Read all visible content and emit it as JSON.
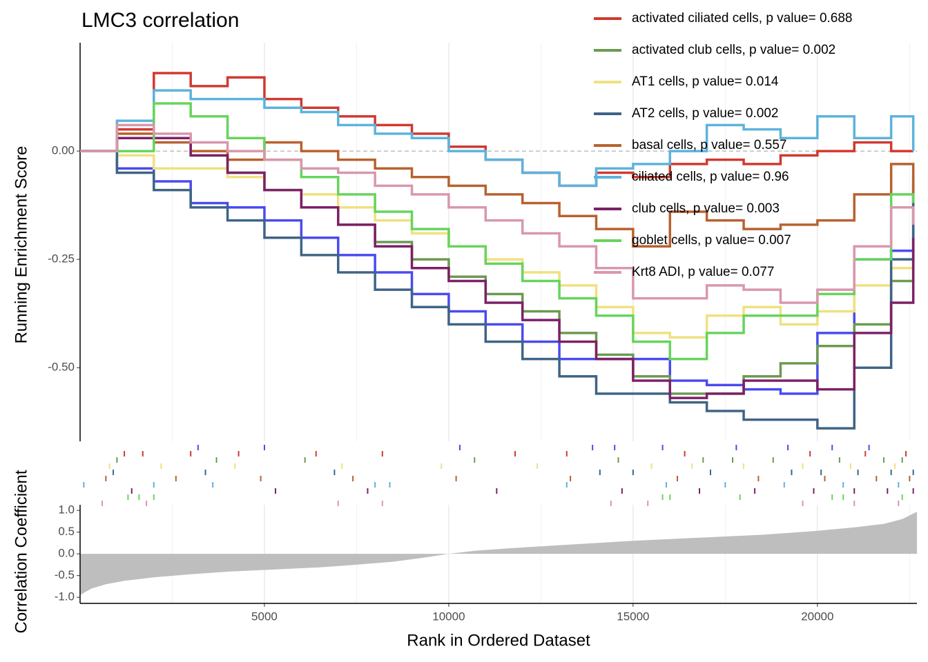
{
  "chart_data": [
    {
      "type": "line",
      "title": "LMC3 correlation",
      "y_label": "Running Enrichment Score",
      "legend": "top-right",
      "grid": true,
      "zero_line": true,
      "xlim": [
        0,
        22700
      ],
      "ylim": [
        -0.67,
        0.25
      ],
      "yticks": [
        {
          "value": 0,
          "label": "0.00"
        },
        {
          "value": -0.25,
          "label": "-0.25"
        },
        {
          "value": -0.5,
          "label": "-0.50"
        }
      ],
      "x": [
        0,
        1000,
        2000,
        3000,
        4000,
        5000,
        6000,
        7000,
        8000,
        9000,
        10000,
        11000,
        12000,
        13000,
        14000,
        15000,
        16000,
        17000,
        18000,
        19000,
        20000,
        21000,
        22000,
        22600
      ],
      "series": [
        {
          "color": "#4a4af0",
          "values": [
            0,
            -0.04,
            -0.07,
            -0.12,
            -0.13,
            -0.16,
            -0.2,
            -0.24,
            -0.28,
            -0.33,
            -0.37,
            -0.4,
            -0.44,
            -0.48,
            -0.48,
            -0.48,
            -0.53,
            -0.54,
            -0.55,
            -0.56,
            -0.42,
            -0.25,
            -0.23,
            -0.08
          ],
          "hits": [
            3200,
            5000,
            10300,
            13900,
            14500,
            15800,
            17800,
            19200,
            20400,
            21400
          ]
        },
        {
          "name": "activated ciliated cells, p value= 0.688",
          "color": "#cf3a2f",
          "values": [
            0,
            0.05,
            0.18,
            0.15,
            0.17,
            0.12,
            0.1,
            0.08,
            0.06,
            0.04,
            0.01,
            -0.02,
            -0.05,
            -0.08,
            -0.05,
            -0.06,
            -0.03,
            -0.02,
            -0.03,
            -0.01,
            0,
            0.02,
            0,
            0
          ],
          "hits": [
            1200,
            1700,
            3000,
            4300,
            6400,
            8200,
            11800,
            13200,
            16400,
            19800,
            21300,
            22400
          ]
        },
        {
          "name": "activated club cells, p value= 0.002",
          "color": "#6b9a50",
          "values": [
            0,
            0.03,
            0.03,
            -0.01,
            -0.05,
            -0.09,
            -0.13,
            -0.17,
            -0.21,
            -0.25,
            -0.29,
            -0.33,
            -0.37,
            -0.42,
            -0.47,
            -0.52,
            -0.56,
            -0.56,
            -0.52,
            -0.49,
            -0.45,
            -0.4,
            -0.3,
            -0.2
          ],
          "hits": [
            1000,
            3700,
            6100,
            10700,
            14600,
            16900,
            17700,
            18800,
            20600,
            21800,
            22300
          ]
        },
        {
          "name": "AT1 cells, p value= 0.014",
          "color": "#efe17f",
          "values": [
            0,
            -0.01,
            -0.04,
            -0.04,
            -0.06,
            -0.09,
            -0.1,
            -0.13,
            -0.16,
            -0.19,
            -0.22,
            -0.25,
            -0.28,
            -0.31,
            -0.36,
            -0.42,
            -0.43,
            -0.38,
            -0.36,
            -0.4,
            -0.37,
            -0.31,
            -0.27,
            -0.3
          ],
          "hits": [
            800,
            2200,
            4200,
            7100,
            9800,
            12400,
            15500,
            16600,
            18000,
            19600,
            20900,
            22100
          ]
        },
        {
          "name": "AT2 cells, p value= 0.002",
          "color": "#3e6485",
          "values": [
            0,
            -0.05,
            -0.09,
            -0.13,
            -0.16,
            -0.2,
            -0.24,
            -0.28,
            -0.32,
            -0.36,
            -0.4,
            -0.44,
            -0.48,
            -0.52,
            -0.56,
            -0.56,
            -0.58,
            -0.6,
            -0.62,
            -0.62,
            -0.64,
            -0.5,
            -0.25,
            -0.06
          ],
          "hits": [
            900,
            3400,
            6900,
            14100,
            15000,
            17100,
            19300,
            20100,
            21100,
            22000,
            22600
          ]
        },
        {
          "name": "basal cells, p value= 0.557",
          "color": "#b8612f",
          "values": [
            0,
            0.04,
            0.02,
            0,
            -0.02,
            0.02,
            0,
            -0.02,
            -0.04,
            -0.06,
            -0.08,
            -0.1,
            -0.12,
            -0.15,
            -0.18,
            -0.22,
            -0.14,
            -0.16,
            -0.18,
            -0.17,
            -0.16,
            -0.1,
            -0.03,
            -0.12
          ],
          "hits": [
            700,
            2600,
            4900,
            7400,
            10200,
            13300,
            16200,
            18400,
            20200,
            21600,
            22500
          ]
        },
        {
          "name": "ciliated cells, p value= 0.96",
          "color": "#5cb3dd",
          "values": [
            0,
            0.07,
            0.14,
            0.12,
            0.12,
            0.1,
            0.09,
            0.06,
            0.04,
            0.03,
            0,
            -0.02,
            -0.05,
            -0.08,
            -0.04,
            -0.03,
            0,
            0.06,
            0.05,
            0.03,
            0.08,
            0.03,
            0.08,
            0
          ],
          "hits": [
            100,
            2000,
            3600,
            8000,
            8400,
            13200,
            15900,
            17500,
            19100,
            20700,
            22200
          ]
        },
        {
          "name": "club cells, p value= 0.003",
          "color": "#7c2067",
          "values": [
            0,
            0.03,
            0.03,
            -0.01,
            -0.05,
            -0.09,
            -0.13,
            -0.17,
            -0.22,
            -0.27,
            -0.3,
            -0.35,
            -0.39,
            -0.44,
            -0.48,
            -0.53,
            -0.57,
            -0.56,
            -0.53,
            -0.53,
            -0.55,
            -0.42,
            -0.35,
            -0.2
          ],
          "hits": [
            1400,
            5300,
            7800,
            11300,
            14700,
            16800,
            18300,
            19900,
            21000,
            21900,
            22600
          ]
        },
        {
          "name": "goblet cells, p value= 0.007",
          "color": "#67d45d",
          "values": [
            0,
            0,
            0.11,
            0.08,
            0.03,
            -0.02,
            -0.06,
            -0.1,
            -0.14,
            -0.18,
            -0.22,
            -0.26,
            -0.3,
            -0.34,
            -0.38,
            -0.44,
            -0.48,
            -0.42,
            -0.38,
            -0.38,
            -0.33,
            -0.25,
            -0.1,
            -0.12
          ],
          "hits": [
            1300,
            1600,
            2000,
            15800,
            16000,
            17900,
            20400,
            20700,
            22300
          ]
        },
        {
          "name": "Krt8 ADI, p value= 0.077",
          "color": "#d897ad",
          "values": [
            0,
            0.06,
            0.04,
            0.02,
            0,
            -0.02,
            -0.04,
            -0.05,
            -0.08,
            -0.1,
            -0.13,
            -0.16,
            -0.19,
            -0.22,
            -0.27,
            -0.34,
            -0.34,
            -0.31,
            -0.32,
            -0.35,
            -0.32,
            -0.22,
            -0.13,
            -0.17
          ],
          "hits": [
            600,
            1800,
            7000,
            8200,
            14400,
            15400,
            19600,
            21000,
            22200
          ]
        }
      ]
    },
    {
      "type": "area",
      "x_label": "Rank in Ordered Dataset",
      "y_label": "Correlation Coefficient",
      "color": "#bebebe",
      "grid": true,
      "xlim": [
        0,
        22700
      ],
      "ylim": [
        -1.14,
        1.13
      ],
      "xticks": [
        5000,
        10000,
        15000,
        20000
      ],
      "yticks": [
        {
          "value": 1,
          "label": "1.0"
        },
        {
          "value": 0.5,
          "label": "0.5"
        },
        {
          "value": 0,
          "label": "0.0"
        },
        {
          "value": -0.5,
          "label": "-0.5"
        },
        {
          "value": -1,
          "label": "-1.0"
        }
      ],
      "x": [
        0,
        300,
        700,
        1200,
        2000,
        3000,
        4000,
        5000,
        6500,
        7500,
        8500,
        9300,
        10000,
        10700,
        11500,
        13000,
        15000,
        17000,
        18500,
        20000,
        21000,
        21800,
        22300,
        22700
      ],
      "values": [
        -0.95,
        -0.8,
        -0.7,
        -0.62,
        -0.54,
        -0.47,
        -0.41,
        -0.37,
        -0.31,
        -0.25,
        -0.18,
        -0.09,
        0,
        0.07,
        0.12,
        0.2,
        0.3,
        0.38,
        0.44,
        0.53,
        0.61,
        0.69,
        0.8,
        0.97
      ]
    }
  ]
}
